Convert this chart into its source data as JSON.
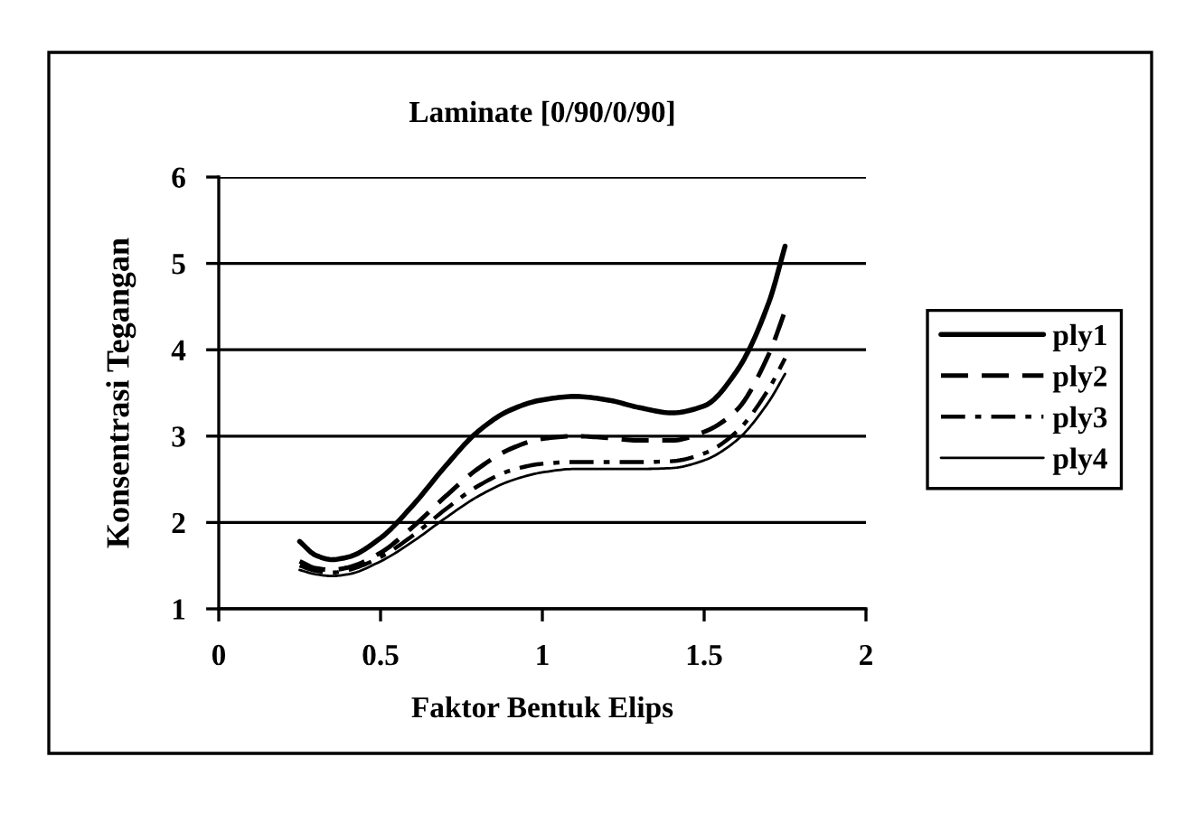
{
  "chart_data": {
    "type": "line",
    "title": "Laminate [0/90/0/90]",
    "xlabel": "Faktor Bentuk Elips",
    "ylabel": "Konsentrasi Tegangan",
    "x": [
      0.25,
      0.3,
      0.35,
      0.4,
      0.5,
      0.6,
      0.7,
      0.8,
      0.9,
      1.0,
      1.1,
      1.2,
      1.3,
      1.4,
      1.5,
      1.6,
      1.7,
      1.75
    ],
    "series": [
      {
        "name": "ply1",
        "color": "#000000",
        "line_style": "solid",
        "values": [
          1.78,
          1.62,
          1.57,
          1.6,
          1.82,
          2.2,
          2.65,
          3.05,
          3.3,
          3.42,
          3.46,
          3.42,
          3.33,
          3.27,
          3.35,
          3.75,
          4.55,
          5.2
        ]
      },
      {
        "name": "ply2",
        "color": "#000000",
        "line_style": "dashed",
        "values": [
          1.55,
          1.47,
          1.45,
          1.48,
          1.65,
          1.95,
          2.3,
          2.62,
          2.85,
          2.97,
          3.0,
          2.98,
          2.95,
          2.95,
          3.05,
          3.3,
          3.95,
          4.45
        ]
      },
      {
        "name": "ply3",
        "color": "#000000",
        "line_style": "dashdot",
        "values": [
          1.5,
          1.44,
          1.42,
          1.45,
          1.6,
          1.85,
          2.15,
          2.42,
          2.6,
          2.68,
          2.7,
          2.7,
          2.7,
          2.71,
          2.8,
          3.05,
          3.55,
          3.9
        ]
      },
      {
        "name": "ply4",
        "color": "#000000",
        "line_style": "solid",
        "values": [
          1.45,
          1.4,
          1.38,
          1.4,
          1.55,
          1.78,
          2.05,
          2.3,
          2.48,
          2.58,
          2.62,
          2.62,
          2.62,
          2.63,
          2.72,
          2.95,
          3.4,
          3.72
        ]
      }
    ],
    "xlim": [
      0,
      2
    ],
    "xticks": [
      0,
      {
        "value": 0.5,
        "label": "0.5"
      },
      1,
      {
        "value": 1.5,
        "label": "1.5"
      },
      2
    ],
    "ylim": [
      1,
      6
    ],
    "yticks": [
      1,
      2,
      3,
      4,
      5,
      6
    ],
    "grid": "y",
    "legend": "right"
  }
}
